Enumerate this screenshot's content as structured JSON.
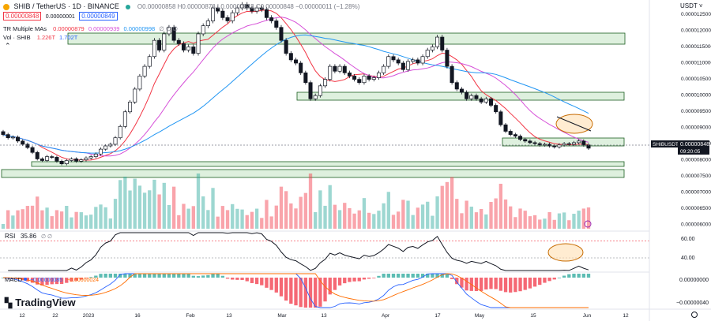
{
  "header": {
    "symbol_title": "SHIB / TetherUS · 1D · BINANCE",
    "ohlc": "O0.00000858 H0.00000878 L0.00000843 C0.00000848 −0.00000011 (−1.28%)",
    "bid_price": "0.00000848",
    "spread": "0.00000001",
    "ask_price": "0.00000849",
    "ma_label": "TR Multiple MAs",
    "ma_values": [
      "0.00000879",
      "0.00000939",
      "0.00000998"
    ],
    "ma_settings": "∅ ∅ ∅",
    "vol_label": "Vol · SHIB",
    "vol_values": [
      "1.226T",
      "1.702T"
    ],
    "currency": "USDT"
  },
  "colors": {
    "up": "#26a69a",
    "down": "#131722",
    "ma_fast": "#f23645",
    "ma_mid": "#d64fd8",
    "ma_slow": "#2196f3",
    "zone_fill": "#d6ecd6",
    "zone_stroke": "#1b5e20",
    "macd_line": "#2962ff",
    "signal_line": "#ff6d00"
  },
  "price_axis": {
    "ticks": [
      "0.00001250000",
      "0.00001200000",
      "0.00001150000",
      "0.00001100000",
      "0.00001050000",
      "0.00001000000",
      "0.00000950000",
      "0.00000900000",
      "0.00000850000",
      "0.00000800000",
      "0.00000750000",
      "0.00000700000",
      "0.00000650000",
      "0.00000600000"
    ],
    "last_label": "SHIBUSDT",
    "last_price": "0.00000848",
    "countdown": "09:20:05"
  },
  "rsi": {
    "label": "RSI",
    "value": "35.86",
    "settings": "∅ ∅",
    "ticks": [
      "60.00",
      "40.00"
    ]
  },
  "macd": {
    "label": "MACD",
    "values": [
      "−0.00000085",
      "−0.00000024"
    ],
    "ticks": [
      "0.00000000",
      "−0.00000040"
    ]
  },
  "time_axis": [
    "12",
    "22",
    "2023",
    "16",
    "Feb",
    "13",
    "Mar",
    "13",
    "Apr",
    "17",
    "May",
    "15",
    "Jun",
    "12"
  ],
  "branding": "TradingView",
  "chart_data": {
    "type": "candlestick",
    "title": "SHIB / TetherUS · 1D · BINANCE",
    "y_unit": "USDT",
    "ylim": [
      6e-06,
      1.28e-05
    ],
    "close_series": [
      8.9e-06,
      8.8e-06,
      8.82e-06,
      8.7e-06,
      8.6e-06,
      8.5e-06,
      8.35e-06,
      8.15e-06,
      8.1e-06,
      8.22e-06,
      8.2e-06,
      8.08e-06,
      8e-06,
      8.1e-06,
      8.15e-06,
      8.08e-06,
      8.12e-06,
      8.18e-06,
      8.22e-06,
      8.3e-06,
      8.45e-06,
      8.55e-06,
      8.6e-06,
      8.8e-06,
      9.15e-06,
      9.6e-06,
      9.9e-06,
      1.03e-05,
      1.07e-05,
      1.1e-05,
      1.13e-05,
      1.18e-05,
      1.15e-05,
      1.2e-05,
      1.22e-05,
      1.18e-05,
      1.17e-05,
      1.15e-05,
      1.16e-05,
      1.14e-05,
      1.2e-05,
      1.225e-05,
      1.24e-05,
      1.28e-05,
      1.27e-05,
      1.25e-05,
      1.24e-05,
      1.265e-05,
      1.28e-05,
      1.29e-05,
      1.28e-05,
      1.27e-05,
      1.28e-05,
      1.275e-05,
      1.25e-05,
      1.24e-05,
      1.22e-05,
      1.18e-05,
      1.14e-05,
      1.12e-05,
      1.11e-05,
      1.08e-05,
      1.05e-05,
      1e-05,
      1.01e-05,
      1.04e-05,
      1.06e-05,
      1.1e-05,
      1.085e-05,
      1.1e-05,
      1.08e-05,
      1.07e-05,
      1.06e-05,
      1.05e-05,
      1.07e-05,
      1.06e-05,
      1.065e-05,
      1.08e-05,
      1.1e-05,
      1.13e-05,
      1.12e-05,
      1.11e-05,
      1.09e-05,
      1.115e-05,
      1.12e-05,
      1.11e-05,
      1.13e-05,
      1.15e-05,
      1.16e-05,
      1.19e-05,
      1.15e-05,
      1.1e-05,
      1.05e-05,
      1.03e-05,
      1.02e-05,
      1e-05,
      1.01e-05,
      1e-05,
      9.9e-06,
      1e-05,
      9.8e-06,
      9.6e-06,
      9.2e-06,
      9e-06,
      8.9e-06,
      8.85e-06,
      8.75e-06,
      8.7e-06,
      8.65e-06,
      8.62e-06,
      8.58e-06,
      8.6e-06,
      8.55e-06,
      8.52e-06,
      8.58e-06,
      8.62e-06,
      8.6e-06,
      8.65e-06,
      8.7e-06,
      8.58e-06,
      8.48e-06
    ],
    "annotations": [
      "horizontal zones",
      "ellipse highlight"
    ]
  }
}
